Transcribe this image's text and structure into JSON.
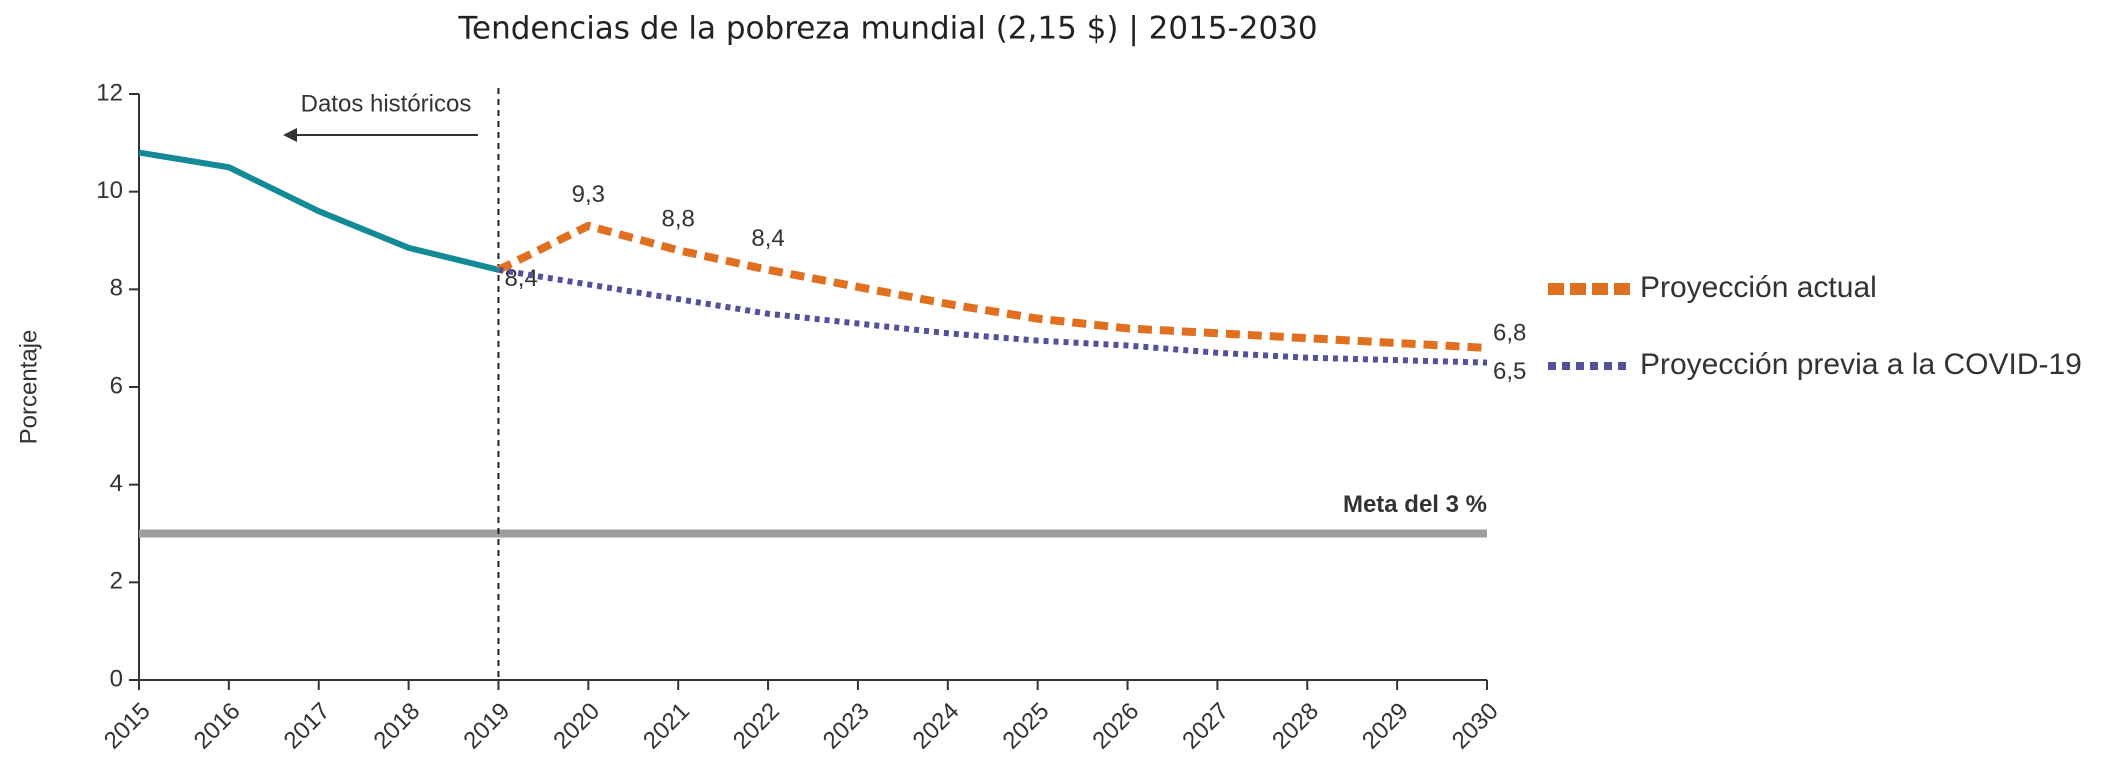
{
  "chart_data": {
    "type": "line",
    "title": "Tendencias de la pobreza mundial (2,15 $) | 2015-2030",
    "y_label": "Porcentaje",
    "annotation": "Datos históricos",
    "divider_x": 2019,
    "target": {
      "value": 3,
      "label": "Meta del 3 %",
      "color": "#9e9e9e"
    },
    "xlim": [
      2015,
      2030
    ],
    "ylim": [
      0,
      12
    ],
    "xticks": [
      2015,
      2016,
      2017,
      2018,
      2019,
      2020,
      2021,
      2022,
      2023,
      2024,
      2025,
      2026,
      2027,
      2028,
      2029,
      2030
    ],
    "yticks": [
      0,
      2,
      4,
      6,
      8,
      10,
      12
    ],
    "series": [
      {
        "color": "#138a96",
        "style": "solid",
        "x": [
          2015,
          2016,
          2017,
          2018,
          2019
        ],
        "values": [
          10.8,
          10.5,
          9.6,
          8.85,
          8.4
        ],
        "value_labels": [
          null,
          null,
          null,
          null,
          "8,4"
        ]
      },
      {
        "name": "Proyección actual",
        "color": "#e07020",
        "style": "dashed",
        "x": [
          2019,
          2020,
          2021,
          2022,
          2023,
          2024,
          2025,
          2026,
          2027,
          2028,
          2029,
          2030
        ],
        "values": [
          8.4,
          9.3,
          8.8,
          8.4,
          8.05,
          7.7,
          7.4,
          7.2,
          7.1,
          7.0,
          6.9,
          6.8
        ],
        "value_labels": [
          null,
          "9,3",
          "8,8",
          "8,4",
          null,
          null,
          null,
          null,
          null,
          null,
          null,
          "6,8"
        ]
      },
      {
        "name": "Proyección previa a la COVID-19",
        "color": "#54519a",
        "style": "dotted",
        "x": [
          2019,
          2020,
          2021,
          2022,
          2023,
          2024,
          2025,
          2026,
          2027,
          2028,
          2029,
          2030
        ],
        "values": [
          8.4,
          8.1,
          7.8,
          7.5,
          7.3,
          7.1,
          6.95,
          6.85,
          6.7,
          6.6,
          6.55,
          6.5
        ],
        "value_labels": [
          null,
          null,
          null,
          null,
          null,
          null,
          null,
          null,
          null,
          null,
          null,
          "6,5"
        ]
      }
    ]
  }
}
